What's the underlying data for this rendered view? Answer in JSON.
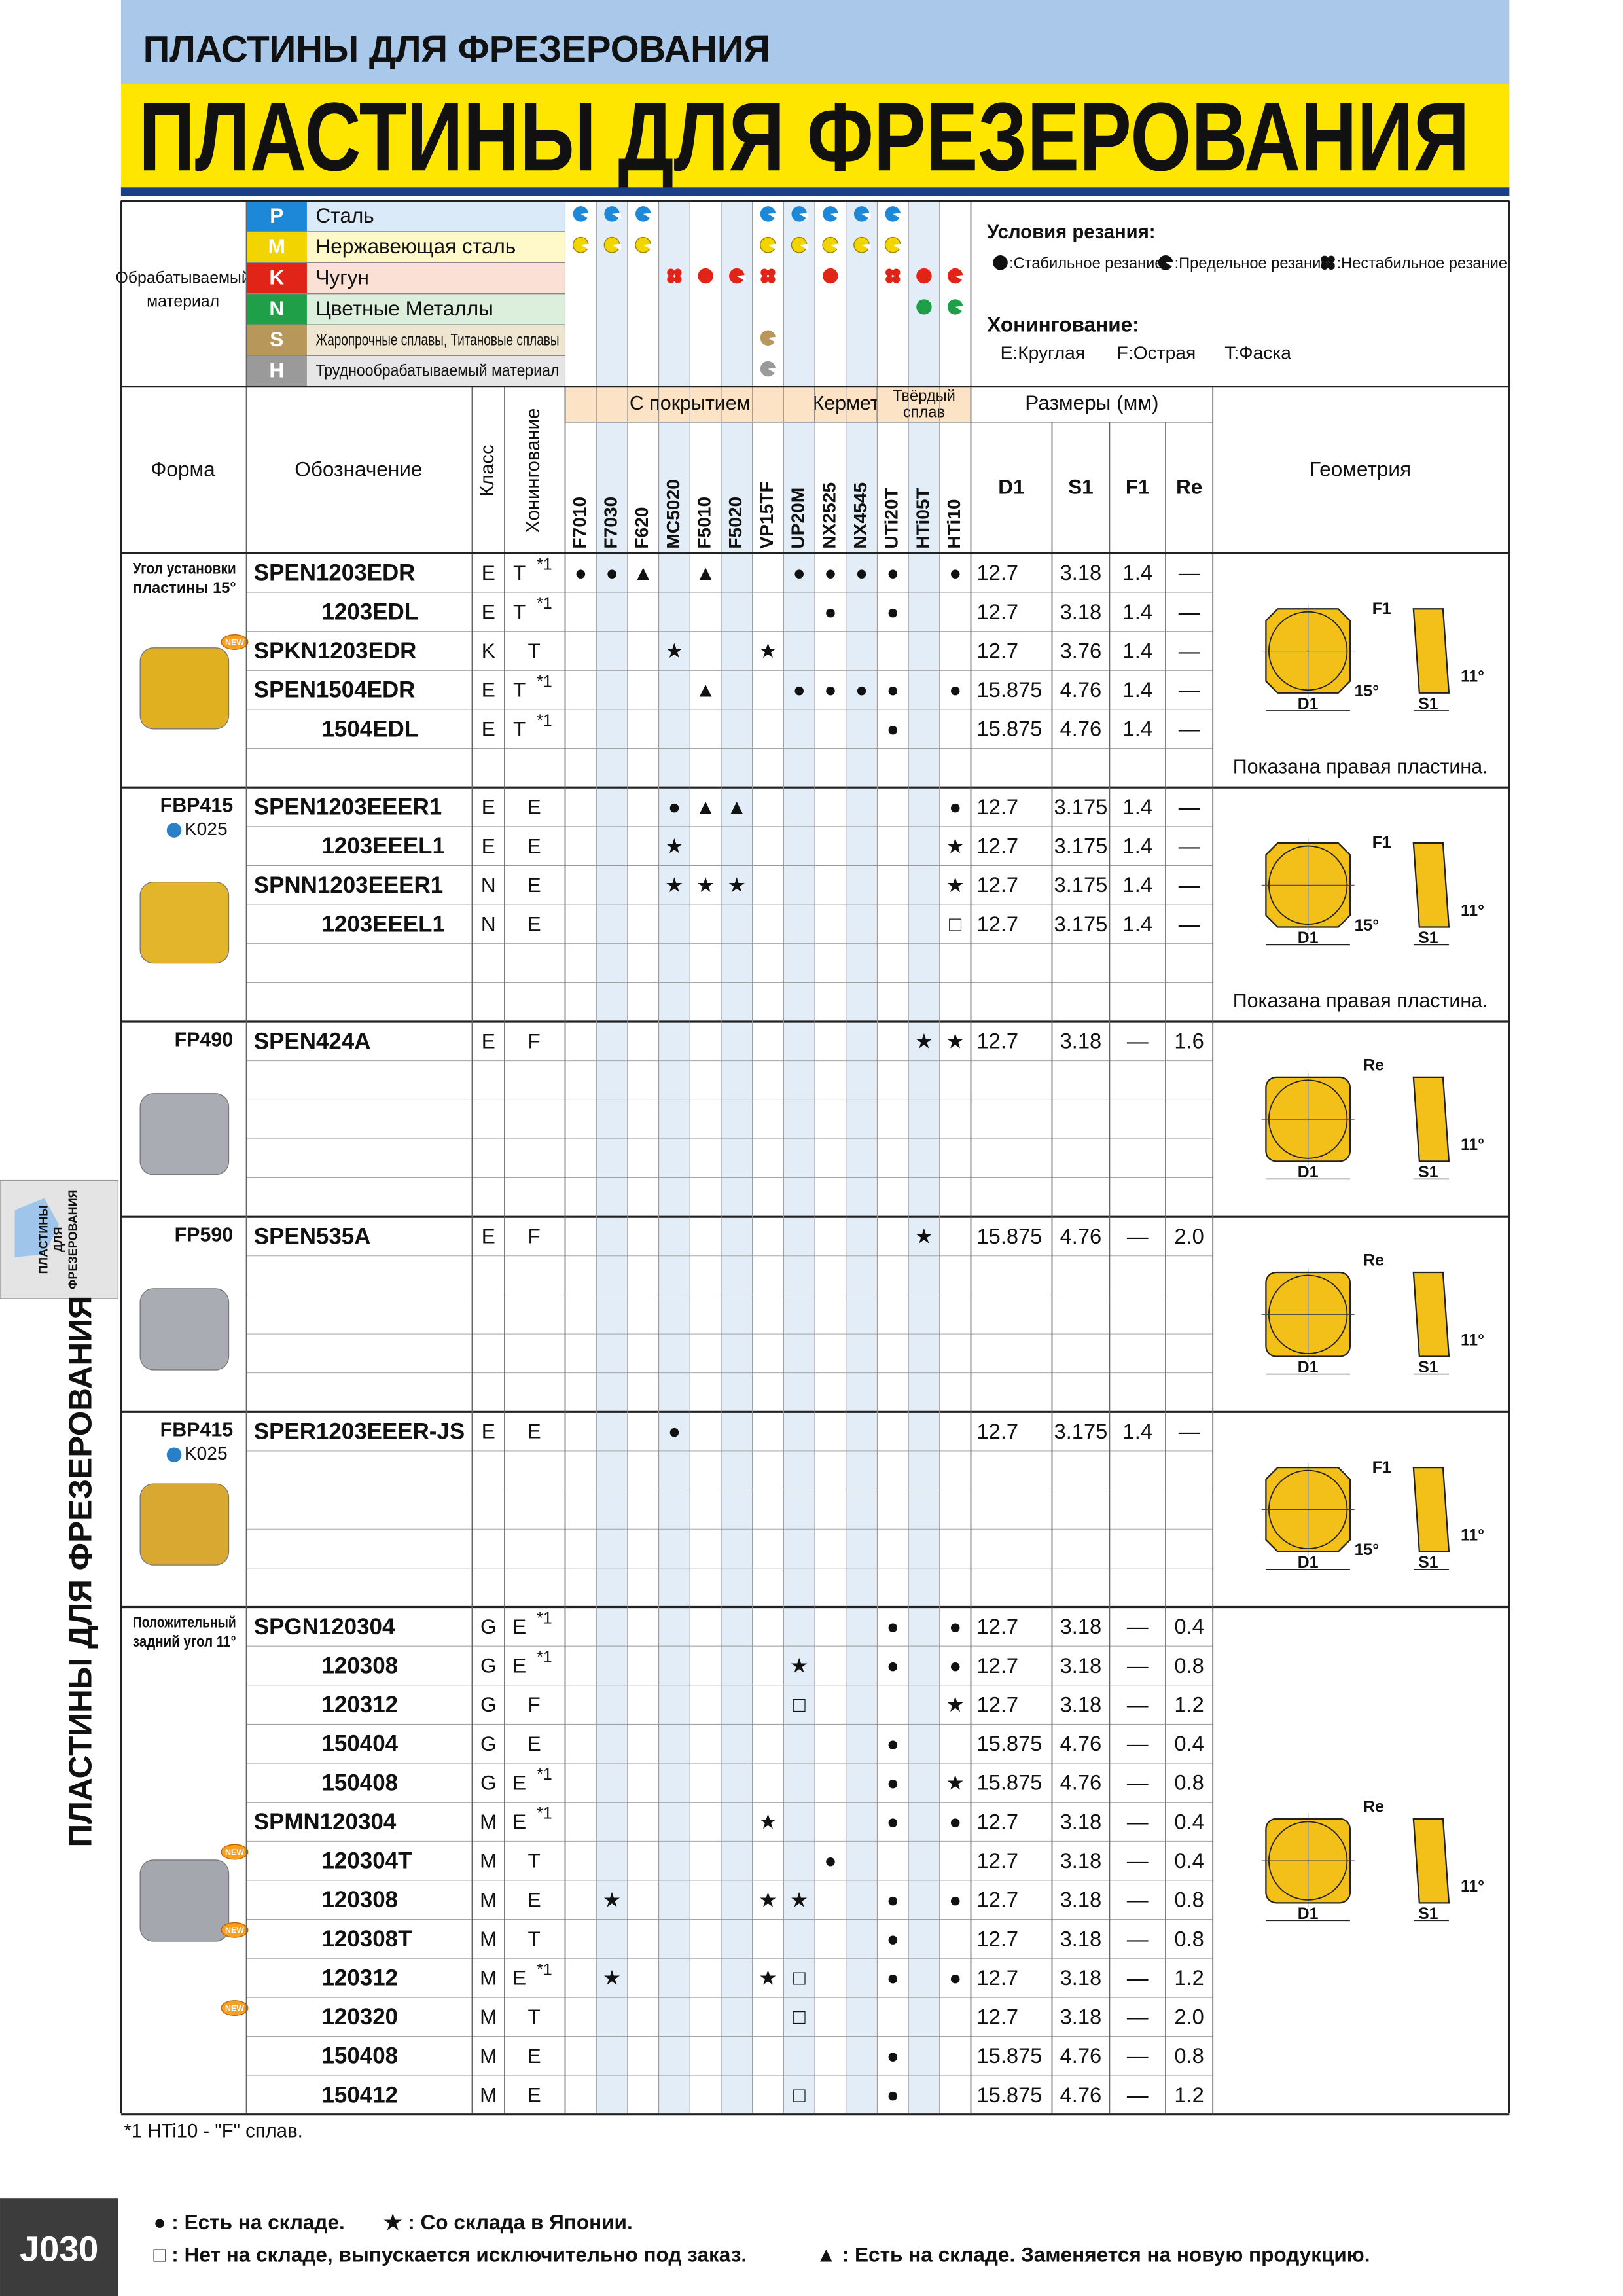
{
  "header": {
    "section": "ПЛАСТИНЫ ДЛЯ ФРЕЗЕРОВАНИЯ",
    "title": "ПЛАСТИНЫ ДЛЯ ФРЕЗЕРОВАНИЯ"
  },
  "side": {
    "tab": [
      "ПЛАСТИНЫ",
      "ДЛЯ",
      "ФРЕЗЕРОВАНИЯ"
    ],
    "label": "ПЛАСТИНЫ ДЛЯ ФРЕЗЕРОВАНИЯ"
  },
  "materials": {
    "label": [
      "Обрабатываемый",
      "материал"
    ],
    "rows": [
      {
        "code": "P",
        "name": "Сталь",
        "color": "#1e88d8",
        "tint": "#dbeaf8"
      },
      {
        "code": "M",
        "name": "Нержавеющая сталь",
        "color": "#f2d400",
        "tint": "#fff8c8"
      },
      {
        "code": "K",
        "name": "Чугун",
        "color": "#e02418",
        "tint": "#fbe0d6"
      },
      {
        "code": "N",
        "name": "Цветные Металлы",
        "color": "#1fa048",
        "tint": "#dcefdc"
      },
      {
        "code": "S",
        "name": "Жаропрочные сплавы, Титановые сплавы",
        "color": "#b8985a",
        "tint": "#efe6d2"
      },
      {
        "code": "H",
        "name": "Труднообрабатываемый материал",
        "color": "#9a9a9a",
        "tint": "#e6e6e6"
      }
    ],
    "chart": [
      [
        "l",
        "l",
        "l",
        null,
        null,
        null,
        "l",
        "l",
        "l",
        "l",
        "l",
        null,
        null
      ],
      [
        "l",
        "l",
        "l",
        null,
        null,
        null,
        "l",
        "l",
        "l",
        "l",
        "l",
        null,
        null
      ],
      [
        null,
        null,
        null,
        "u",
        "s",
        "l",
        "u",
        null,
        "s",
        null,
        "u",
        "s",
        "l"
      ],
      [
        null,
        null,
        null,
        null,
        null,
        null,
        null,
        null,
        null,
        null,
        null,
        "s",
        "l"
      ],
      [
        null,
        null,
        null,
        null,
        null,
        null,
        "l",
        null,
        null,
        null,
        null,
        null,
        null
      ],
      [
        null,
        null,
        null,
        null,
        null,
        null,
        "l",
        null,
        null,
        null,
        null,
        null,
        null
      ]
    ]
  },
  "conditions": {
    "title": "Условия резания:",
    "items": [
      {
        "kind": "s",
        "text": ":Стабильное резание"
      },
      {
        "kind": "l",
        "text": ":Предельное резание"
      },
      {
        "kind": "u",
        "text": ":Нестабильное резание"
      }
    ]
  },
  "honing": {
    "title": "Хонингование:",
    "items": [
      "E:Круглая",
      "F:Острая",
      "T:Фаска"
    ]
  },
  "table": {
    "headers": {
      "form": "Форма",
      "designation": "Обозначение",
      "class": "Класс",
      "honing": "Хонингование",
      "dims": "Размеры (мм)",
      "geometry": "Геометрия"
    },
    "grade_groups": [
      {
        "name": [
          "С покрытием"
        ],
        "span": 8
      },
      {
        "name": [
          "Кермет"
        ],
        "span": 2
      },
      {
        "name": [
          "Твёрдый",
          "сплав"
        ],
        "span": 3
      }
    ],
    "grades": [
      "F7010",
      "F7030",
      "F620",
      "MC5020",
      "F5010",
      "F5020",
      "VP15TF",
      "UP20M",
      "NX2525",
      "NX4545",
      "UTi20T",
      "HTi05T",
      "HTi10"
    ],
    "dim_cols": [
      "D1",
      "S1",
      "F1",
      "Re"
    ],
    "groups": [
      {
        "form": {
          "lines": [
            "Угол установки",
            "пластины 15°"
          ]
        },
        "photo": "#e0b020",
        "note": "Показана правая пластина.",
        "geometry": {
          "kind": "chamfer",
          "F": "F1",
          "angle": "15°",
          "relief": "11°",
          "D": "D1",
          "S": "S1"
        },
        "rows": [
          {
            "name": "SPEN1203EDR",
            "class": "E",
            "honing": "T",
            "note": "*1",
            "marks": {
              "F7010": "●",
              "F7030": "●",
              "F620": "▲",
              "F5010": "▲",
              "UP20M": "●",
              "NX2525": "●",
              "NX4545": "●",
              "UTi20T": "●",
              "HTi10": "●"
            },
            "dims": [
              "12.7",
              "3.18",
              "1.4",
              "—"
            ]
          },
          {
            "name": "1203EDL",
            "class": "E",
            "honing": "T",
            "note": "*1",
            "marks": {
              "NX2525": "●",
              "UTi20T": "●"
            },
            "dims": [
              "12.7",
              "3.18",
              "1.4",
              "—"
            ]
          },
          {
            "name": "SPKN1203EDR",
            "new": "NEW",
            "class": "K",
            "honing": "T",
            "marks": {
              "MC5020": "★",
              "VP15TF": "★"
            },
            "dims": [
              "12.7",
              "3.76",
              "1.4",
              "—"
            ]
          },
          {
            "name": "SPEN1504EDR",
            "class": "E",
            "honing": "T",
            "note": "*1",
            "marks": {
              "F5010": "▲",
              "UP20M": "●",
              "NX2525": "●",
              "NX4545": "●",
              "UTi20T": "●",
              "HTi10": "●"
            },
            "dims": [
              "15.875",
              "4.76",
              "1.4",
              "—"
            ]
          },
          {
            "name": "1504EDL",
            "class": "E",
            "honing": "T",
            "note": "*1",
            "marks": {
              "UTi20T": "●"
            },
            "dims": [
              "15.875",
              "4.76",
              "1.4",
              "—"
            ]
          }
        ]
      },
      {
        "form": {
          "name": "FBP415",
          "link": "K025"
        },
        "photo": "#e3b52a",
        "note": "Показана правая пластина.",
        "geometry": {
          "kind": "chamfer",
          "F": "F1",
          "angle": "15°",
          "relief": "11°",
          "D": "D1",
          "S": "S1"
        },
        "rows": [
          {
            "name": "SPEN1203EEER1",
            "class": "E",
            "honing": "E",
            "marks": {
              "MC5020": "●",
              "F5010": "▲",
              "F5020": "▲",
              "HTi10": "●"
            },
            "dims": [
              "12.7",
              "3.175",
              "1.4",
              "—"
            ]
          },
          {
            "name": "1203EEEL1",
            "class": "E",
            "honing": "E",
            "marks": {
              "MC5020": "★",
              "HTi10": "★"
            },
            "dims": [
              "12.7",
              "3.175",
              "1.4",
              "—"
            ]
          },
          {
            "name": "SPNN1203EEER1",
            "class": "N",
            "honing": "E",
            "marks": {
              "MC5020": "★",
              "F5010": "★",
              "F5020": "★",
              "HTi10": "★"
            },
            "dims": [
              "12.7",
              "3.175",
              "1.4",
              "—"
            ]
          },
          {
            "name": "1203EEEL1",
            "class": "N",
            "honing": "E",
            "marks": {
              "HTi10": "□"
            },
            "dims": [
              "12.7",
              "3.175",
              "1.4",
              "—"
            ]
          }
        ]
      },
      {
        "form": {
          "name": "FP490"
        },
        "photo": "#a9adb3",
        "geometry": {
          "kind": "radius",
          "R": "Re",
          "relief": "11°",
          "D": "D1",
          "S": "S1"
        },
        "rows": [
          {
            "name": "SPEN424A",
            "class": "E",
            "honing": "F",
            "marks": {
              "HTi05T": "★",
              "HTi10": "★"
            },
            "dims": [
              "12.7",
              "3.18",
              "—",
              "1.6"
            ]
          }
        ]
      },
      {
        "form": {
          "name": "FP590"
        },
        "photo": "#a9adb3",
        "geometry": {
          "kind": "radius",
          "R": "Re",
          "relief": "11°",
          "D": "D1",
          "S": "S1"
        },
        "rows": [
          {
            "name": "SPEN535A",
            "class": "E",
            "honing": "F",
            "marks": {
              "HTi05T": "★"
            },
            "dims": [
              "15.875",
              "4.76",
              "—",
              "2.0"
            ]
          }
        ]
      },
      {
        "form": {
          "name": "FBP415",
          "link": "K025"
        },
        "photo": "#d9a830",
        "geometry": {
          "kind": "chamfer",
          "F": "F1",
          "angle": "15°",
          "relief": "11°",
          "D": "D1",
          "S": "S1"
        },
        "rows": [
          {
            "name": "SPER1203EEER-JS",
            "class": "E",
            "honing": "E",
            "marks": {
              "MC5020": "●"
            },
            "dims": [
              "12.7",
              "3.175",
              "1.4",
              "—"
            ]
          }
        ]
      },
      {
        "form": {
          "lines": [
            "Положительный",
            "задний угол 11°"
          ]
        },
        "photo": "#a4a8ae",
        "geometry": {
          "kind": "radius",
          "R": "Re",
          "relief": "11°",
          "D": "D1",
          "S": "S1"
        },
        "rows": [
          {
            "name": "SPGN120304",
            "class": "G",
            "honing": "E",
            "note": "*1",
            "marks": {
              "UTi20T": "●",
              "HTi10": "●"
            },
            "dims": [
              "12.7",
              "3.18",
              "—",
              "0.4"
            ]
          },
          {
            "name": "120308",
            "class": "G",
            "honing": "E",
            "note": "*1",
            "marks": {
              "UP20M": "★",
              "UTi20T": "●",
              "HTi10": "●"
            },
            "dims": [
              "12.7",
              "3.18",
              "—",
              "0.8"
            ]
          },
          {
            "name": "120312",
            "class": "G",
            "honing": "F",
            "marks": {
              "UP20M": "□",
              "HTi10": "★"
            },
            "dims": [
              "12.7",
              "3.18",
              "—",
              "1.2"
            ]
          },
          {
            "name": "150404",
            "class": "G",
            "honing": "E",
            "marks": {
              "UTi20T": "●"
            },
            "dims": [
              "15.875",
              "4.76",
              "—",
              "0.4"
            ]
          },
          {
            "name": "150408",
            "class": "G",
            "honing": "E",
            "note": "*1",
            "marks": {
              "UTi20T": "●",
              "HTi10": "★"
            },
            "dims": [
              "15.875",
              "4.76",
              "—",
              "0.8"
            ]
          },
          {
            "name": "SPMN120304",
            "class": "M",
            "honing": "E",
            "note": "*1",
            "marks": {
              "VP15TF": "★",
              "UTi20T": "●",
              "HTi10": "●"
            },
            "dims": [
              "12.7",
              "3.18",
              "—",
              "0.4"
            ]
          },
          {
            "name": "120304T",
            "new": "NEW",
            "class": "M",
            "honing": "T",
            "marks": {
              "NX2525": "●"
            },
            "dims": [
              "12.7",
              "3.18",
              "—",
              "0.4"
            ]
          },
          {
            "name": "120308",
            "class": "M",
            "honing": "E",
            "marks": {
              "F7030": "★",
              "VP15TF": "★",
              "UP20M": "★",
              "UTi20T": "●",
              "HTi10": "●"
            },
            "dims": [
              "12.7",
              "3.18",
              "—",
              "0.8"
            ]
          },
          {
            "name": "120308T",
            "new": "NEW",
            "class": "M",
            "honing": "T",
            "marks": {
              "UTi20T": "●"
            },
            "dims": [
              "12.7",
              "3.18",
              "—",
              "0.8"
            ]
          },
          {
            "name": "120312",
            "class": "M",
            "honing": "E",
            "note": "*1",
            "marks": {
              "F7030": "★",
              "VP15TF": "★",
              "UP20M": "□",
              "UTi20T": "●",
              "HTi10": "●"
            },
            "dims": [
              "12.7",
              "3.18",
              "—",
              "1.2"
            ]
          },
          {
            "name": "120320",
            "new": "NEW",
            "class": "M",
            "honing": "T",
            "marks": {
              "UP20M": "□"
            },
            "dims": [
              "12.7",
              "3.18",
              "—",
              "2.0"
            ]
          },
          {
            "name": "150408",
            "class": "M",
            "honing": "E",
            "marks": {
              "UTi20T": "●"
            },
            "dims": [
              "15.875",
              "4.76",
              "—",
              "0.8"
            ]
          },
          {
            "name": "150412",
            "class": "M",
            "honing": "E",
            "marks": {
              "UP20M": "□",
              "UTi20T": "●"
            },
            "dims": [
              "15.875",
              "4.76",
              "—",
              "1.2"
            ]
          }
        ]
      }
    ]
  },
  "footnote": "*1 HTi10 - \"F\" сплав.",
  "legend": [
    "● : Есть на складе.",
    "★ : Со склада в Японии.",
    "□ : Нет на складе, выпускается исключительно под заказ.",
    "▲ : Есть на складе. Заменяется на новую продукцию."
  ],
  "page": "J030"
}
